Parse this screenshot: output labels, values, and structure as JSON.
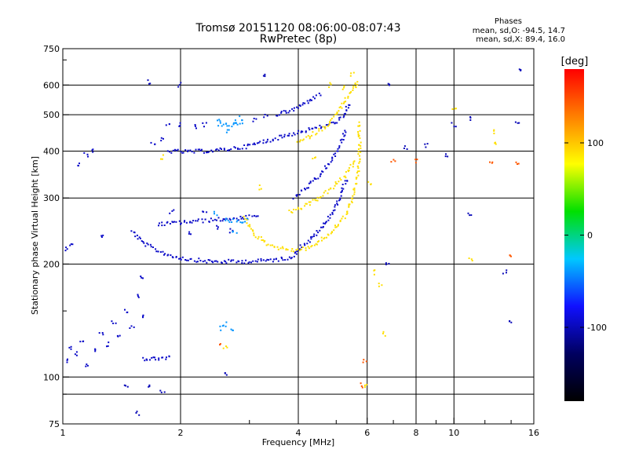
{
  "chart_data": {
    "type": "scatter",
    "title": "Tromsø 20151120 08:06:00-08:07:43",
    "subtitle": "RwPretec (8p)",
    "xlabel": "Frequency [MHz]",
    "ylabel": "Stationary phase Virtual Height [km]",
    "x_scale": "log",
    "y_scale": "log",
    "xlim": [
      1,
      16
    ],
    "ylim": [
      75,
      750
    ],
    "x_ticks": [
      1,
      2,
      4,
      6,
      8,
      10,
      16
    ],
    "x_tick_labels": [
      "1",
      "2",
      "4",
      "6",
      "8",
      "10",
      "16"
    ],
    "x_minor_ticks": [
      3,
      5,
      7,
      9,
      12,
      14
    ],
    "x_grid": [
      2,
      4,
      6,
      8,
      10
    ],
    "y_ticks": [
      75,
      100,
      200,
      300,
      400,
      500,
      600,
      750
    ],
    "y_tick_labels": [
      "75",
      "100",
      "200",
      "300",
      "400",
      "500",
      "600",
      "750"
    ],
    "y_minor_ticks": [
      90,
      150,
      700
    ],
    "y_grid": [
      90,
      100,
      200,
      300,
      400,
      500,
      600
    ],
    "grid": true,
    "stats": {
      "heading": "Phases",
      "line1": "mean, sd,O: -94.5, 14.7",
      "line2": "mean, sd,X:  89.4, 16.0"
    },
    "colorbar": {
      "label": "[deg]",
      "range": [
        -180,
        180
      ],
      "ticks": [
        100,
        0,
        -100
      ],
      "tick_labels": [
        "100",
        "0",
        "-100"
      ],
      "colormap": [
        "#000000",
        "#000060",
        "#1010ff",
        "#00c8ff",
        "#00e000",
        "#ffff00",
        "#ff8000",
        "#ff0000"
      ]
    },
    "traces": [
      {
        "name": "",
        "phase": -95,
        "points": [
          [
            1.6,
            112
          ],
          [
            1.75,
            112
          ],
          [
            1.9,
            113
          ]
        ]
      },
      {
        "name": "",
        "phase": -95,
        "points": [
          [
            1.5,
            245
          ],
          [
            1.6,
            228
          ],
          [
            1.75,
            217
          ],
          [
            1.9,
            210
          ],
          [
            2.1,
            206
          ],
          [
            2.4,
            203
          ],
          [
            2.8,
            203
          ],
          [
            3.2,
            204
          ],
          [
            3.6,
            206
          ],
          [
            3.9,
            210
          ],
          [
            4.0,
            220
          ],
          [
            4.3,
            232
          ],
          [
            4.6,
            250
          ],
          [
            5.0,
            285
          ],
          [
            5.2,
            320
          ],
          [
            5.35,
            340
          ]
        ]
      },
      {
        "name": "",
        "phase": -95,
        "points": [
          [
            1.75,
            255
          ],
          [
            2.0,
            258
          ],
          [
            2.4,
            262
          ],
          [
            2.8,
            265
          ],
          [
            3.2,
            268
          ]
        ]
      },
      {
        "name": "",
        "phase": -95,
        "points": [
          [
            1.85,
            400
          ],
          [
            2.1,
            398
          ],
          [
            2.5,
            402
          ],
          [
            2.9,
            410
          ],
          [
            3.3,
            425
          ],
          [
            3.7,
            440
          ],
          [
            4.2,
            455
          ],
          [
            4.8,
            470
          ],
          [
            5.2,
            490
          ],
          [
            5.4,
            540
          ]
        ]
      },
      {
        "name": "",
        "phase": -95,
        "points": [
          [
            3.5,
            500
          ],
          [
            3.9,
            515
          ],
          [
            4.2,
            540
          ],
          [
            4.6,
            570
          ]
        ]
      },
      {
        "name": "",
        "phase": -95,
        "points": [
          [
            3.9,
            300
          ],
          [
            4.2,
            320
          ],
          [
            4.5,
            340
          ],
          [
            4.8,
            370
          ],
          [
            5.1,
            410
          ],
          [
            5.3,
            460
          ]
        ]
      },
      {
        "name": "",
        "phase": -40,
        "points": [
          [
            2.5,
            470
          ],
          [
            2.7,
            470
          ],
          [
            2.9,
            472
          ]
        ]
      },
      {
        "name": "",
        "phase": -40,
        "points": [
          [
            2.6,
            262
          ],
          [
            2.8,
            260
          ],
          [
            3.0,
            262
          ]
        ]
      },
      {
        "name": "",
        "phase": 90,
        "points": [
          [
            2.9,
            265
          ],
          [
            3.1,
            240
          ],
          [
            3.3,
            228
          ],
          [
            3.6,
            220
          ],
          [
            3.9,
            218
          ],
          [
            4.2,
            220
          ],
          [
            4.5,
            228
          ],
          [
            4.9,
            245
          ],
          [
            5.3,
            270
          ],
          [
            5.55,
            310
          ],
          [
            5.7,
            360
          ],
          [
            5.75,
            420
          ],
          [
            5.7,
            480
          ]
        ]
      },
      {
        "name": "",
        "phase": 90,
        "points": [
          [
            3.8,
            275
          ],
          [
            4.1,
            283
          ],
          [
            4.5,
            300
          ],
          [
            4.9,
            320
          ],
          [
            5.3,
            345
          ],
          [
            5.6,
            380
          ]
        ]
      },
      {
        "name": "",
        "phase": 90,
        "points": [
          [
            4.0,
            420
          ],
          [
            4.3,
            440
          ],
          [
            4.7,
            465
          ],
          [
            5.0,
            500
          ],
          [
            5.3,
            550
          ],
          [
            5.7,
            610
          ]
        ]
      }
    ],
    "scatter": [
      {
        "phase": -95,
        "points": [
          [
            1.02,
            110
          ],
          [
            1.04,
            120
          ],
          [
            1.08,
            115
          ],
          [
            1.12,
            125
          ],
          [
            1.15,
            108
          ],
          [
            1.2,
            118
          ],
          [
            1.25,
            130
          ],
          [
            1.3,
            122
          ],
          [
            1.35,
            140
          ],
          [
            1.4,
            128
          ],
          [
            1.45,
            150
          ],
          [
            1.5,
            135
          ],
          [
            1.55,
            165
          ],
          [
            1.58,
            185
          ],
          [
            1.6,
            145
          ],
          [
            1.1,
            370
          ],
          [
            1.15,
            390
          ],
          [
            1.2,
            400
          ],
          [
            1.02,
            220
          ],
          [
            1.05,
            225
          ],
          [
            1.25,
            235
          ],
          [
            1.8,
            430
          ],
          [
            1.85,
            470
          ],
          [
            2.0,
            470
          ],
          [
            2.2,
            465
          ],
          [
            1.7,
            415
          ],
          [
            2.3,
            278
          ],
          [
            2.5,
            250
          ],
          [
            2.7,
            245
          ],
          [
            3.3,
            495
          ],
          [
            3.1,
            485
          ],
          [
            1.9,
            275
          ],
          [
            2.1,
            240
          ],
          [
            2.3,
            470
          ]
        ]
      },
      {
        "phase": -40,
        "points": [
          [
            2.55,
            135
          ],
          [
            2.6,
            138
          ],
          [
            2.7,
            135
          ],
          [
            2.5,
            480
          ],
          [
            2.65,
            455
          ],
          [
            2.75,
            478
          ],
          [
            2.85,
            490
          ],
          [
            2.45,
            272
          ],
          [
            2.75,
            245
          ]
        ]
      },
      {
        "phase": 90,
        "points": [
          [
            5.6,
            600
          ],
          [
            5.5,
            640
          ],
          [
            4.8,
            600
          ],
          [
            5.2,
            590
          ],
          [
            6.3,
            190
          ],
          [
            6.5,
            175
          ],
          [
            6.6,
            130
          ],
          [
            6.0,
            95
          ],
          [
            6.1,
            330
          ],
          [
            10.0,
            520
          ],
          [
            12.5,
            450
          ],
          [
            12.8,
            420
          ],
          [
            11.0,
            205
          ],
          [
            2.6,
            120
          ],
          [
            3.2,
            320
          ],
          [
            4.4,
            380
          ],
          [
            1.8,
            385
          ]
        ]
      },
      {
        "phase": 145,
        "points": [
          [
            5.8,
            95
          ],
          [
            5.9,
            110
          ],
          [
            7.0,
            380
          ],
          [
            8.0,
            375
          ],
          [
            12.5,
            370
          ],
          [
            14.0,
            212
          ],
          [
            14.5,
            370
          ],
          [
            2.55,
            122
          ]
        ]
      },
      {
        "phase": -100,
        "points": [
          [
            6.8,
            200
          ],
          [
            7.5,
            410
          ],
          [
            8.5,
            415
          ],
          [
            9.5,
            390
          ],
          [
            10.0,
            470
          ],
          [
            11.0,
            490
          ],
          [
            14.5,
            480
          ],
          [
            14.8,
            660
          ],
          [
            13.5,
            190
          ],
          [
            14.0,
            140
          ],
          [
            1.65,
            95
          ],
          [
            1.45,
            95
          ],
          [
            1.55,
            80
          ],
          [
            1.8,
            92
          ],
          [
            3.3,
            640
          ],
          [
            1.65,
            610
          ],
          [
            2.0,
            600
          ],
          [
            6.8,
            600
          ],
          [
            11.0,
            270
          ],
          [
            2.6,
            102
          ]
        ]
      }
    ]
  }
}
